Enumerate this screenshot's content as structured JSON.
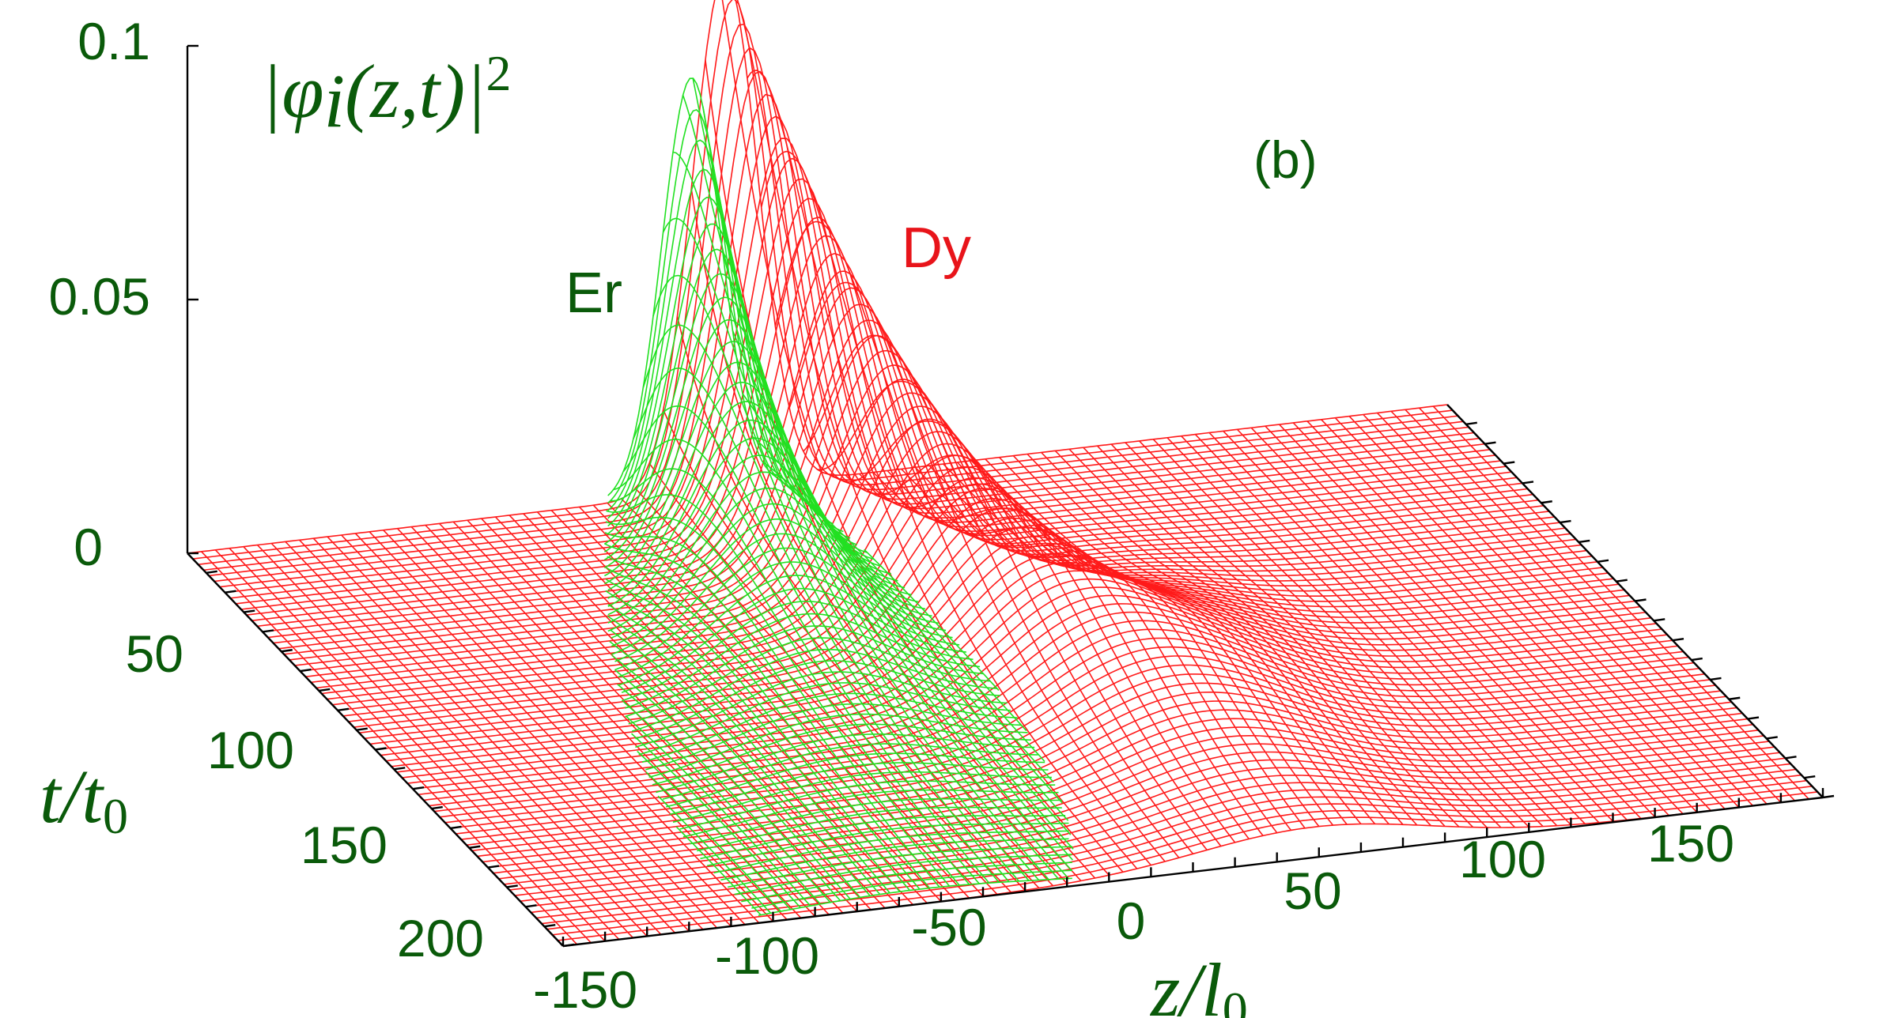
{
  "chart_data": {
    "type": "surface3d",
    "title": "",
    "zlabel": {
      "prefix": "|φ",
      "sub": "i",
      "mid": "(z,t)|",
      "sup": "2"
    },
    "xlabel": {
      "main": "z/l",
      "sub": "0"
    },
    "ylabel": {
      "main": "t/t",
      "sub": "0"
    },
    "panel": "(b)",
    "x_ticks": [
      "-150",
      "-100",
      "-50",
      "0",
      "50",
      "100",
      "150"
    ],
    "y_ticks": [
      "50",
      "100",
      "150",
      "200"
    ],
    "z_ticks": [
      "0",
      "0.05",
      "0.1"
    ],
    "xlim": [
      -150,
      150
    ],
    "ylim": [
      0,
      200
    ],
    "zlim": [
      0,
      0.1
    ],
    "series": [
      {
        "name": "Er",
        "color": "#22e022",
        "label_color": "#0a5a0a",
        "peak": 0.082,
        "center": [
          -30,
          0
        ]
      },
      {
        "name": "Dy",
        "color": "#ff1a1a",
        "label_color": "#e8141a",
        "peak": 0.102,
        "center": [
          -22,
          0
        ]
      }
    ]
  }
}
